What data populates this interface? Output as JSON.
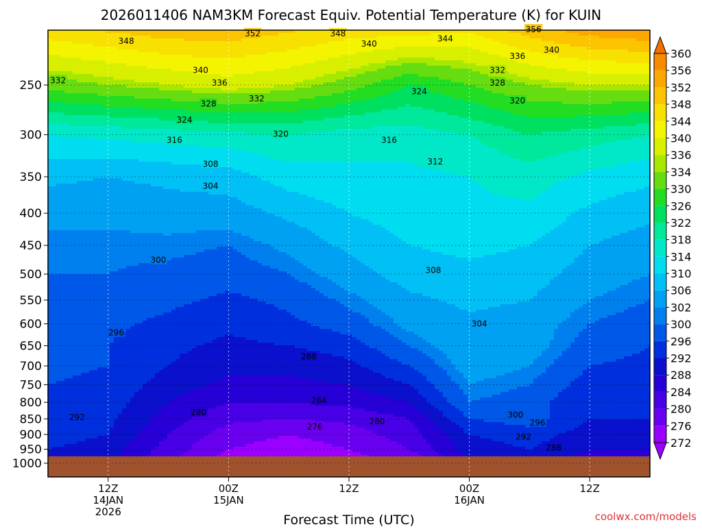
{
  "chart_data": {
    "type": "contour",
    "title": "2026011406 NAM3KM Forecast Equiv. Potential Temperature (K) for KUIN",
    "xlabel": "Forecast Time (UTC)",
    "ylabel": "",
    "credit": "coolwx.com/models",
    "x_unit": "hours after 2026-01-14 06Z",
    "xlim": [
      0,
      60
    ],
    "ylim_hpa": [
      1000,
      200
    ],
    "y_scale": "log",
    "y_ticks": [
      250,
      300,
      350,
      400,
      450,
      500,
      550,
      600,
      650,
      700,
      750,
      800,
      850,
      900,
      950,
      1000
    ],
    "x_ticks": [
      {
        "x": 6,
        "line1": "12Z",
        "line2": "14JAN",
        "line3": "2026"
      },
      {
        "x": 18,
        "line1": "00Z",
        "line2": "15JAN",
        "line3": ""
      },
      {
        "x": 30,
        "line1": "12Z",
        "line2": "",
        "line3": ""
      },
      {
        "x": 42,
        "line1": "00Z",
        "line2": "16JAN",
        "line3": ""
      },
      {
        "x": 54,
        "line1": "12Z",
        "line2": "",
        "line3": ""
      }
    ],
    "colorbar_levels": [
      272,
      276,
      280,
      284,
      288,
      292,
      296,
      300,
      302,
      306,
      310,
      314,
      318,
      322,
      326,
      330,
      334,
      336,
      340,
      344,
      348,
      352,
      356,
      360
    ],
    "colorbar_colors": [
      "#9900ff",
      "#6a00f0",
      "#4800e6",
      "#2600d6",
      "#0a10cc",
      "#0030dd",
      "#0058e8",
      "#0080ee",
      "#00a0f2",
      "#00c0f6",
      "#00dcf0",
      "#00e8c8",
      "#00e89c",
      "#00e060",
      "#22dd22",
      "#66dd10",
      "#a8e800",
      "#d8f000",
      "#f4f400",
      "#f8e000",
      "#fcc400",
      "#fca800",
      "#f88c00",
      "#f07000"
    ],
    "ground_color": "#a0522d",
    "field_columns_x": [
      0,
      6,
      12,
      18,
      24,
      30,
      36,
      42,
      48,
      54,
      60
    ],
    "field_rows_hpa": [
      1000,
      950,
      900,
      850,
      800,
      750,
      700,
      650,
      600,
      550,
      500,
      450,
      400,
      350,
      300,
      250,
      200
    ],
    "field_theta_e": [
      [
        292,
        290,
        280,
        274,
        272,
        274,
        276,
        288,
        290,
        286,
        286
      ],
      [
        292,
        290,
        282,
        276,
        274,
        276,
        280,
        290,
        292,
        288,
        288
      ],
      [
        294,
        292,
        284,
        278,
        276,
        278,
        282,
        292,
        294,
        290,
        290
      ],
      [
        295,
        293,
        286,
        281,
        280,
        281,
        284,
        296,
        298,
        292,
        292
      ],
      [
        296,
        294,
        288,
        284,
        284,
        285,
        288,
        300,
        298,
        292,
        292
      ],
      [
        296,
        295,
        290,
        287,
        287,
        288,
        292,
        302,
        300,
        294,
        294
      ],
      [
        297,
        296,
        292,
        289,
        289,
        291,
        296,
        304,
        302,
        296,
        295
      ],
      [
        297,
        296,
        293,
        291,
        292,
        294,
        300,
        305,
        304,
        298,
        296
      ],
      [
        298,
        297,
        295,
        293,
        295,
        298,
        303,
        305,
        304,
        300,
        298
      ],
      [
        299,
        298,
        297,
        295,
        297,
        301,
        305,
        307,
        306,
        302,
        300
      ],
      [
        300,
        300,
        299,
        298,
        300,
        304,
        308,
        309,
        308,
        304,
        302
      ],
      [
        301,
        301,
        301,
        300,
        303,
        307,
        310,
        311,
        310,
        306,
        304
      ],
      [
        303,
        303,
        304,
        304,
        307,
        310,
        312,
        313,
        313,
        309,
        307
      ],
      [
        307,
        306,
        307,
        308,
        312,
        313,
        313,
        314,
        316,
        313,
        311
      ],
      [
        314,
        315,
        316,
        317,
        318,
        316,
        316,
        318,
        322,
        320,
        318
      ],
      [
        332,
        334,
        336,
        338,
        336,
        332,
        326,
        330,
        334,
        336,
        336
      ],
      [
        348,
        350,
        352,
        352,
        350,
        348,
        348,
        346,
        352,
        356,
        358
      ]
    ],
    "contour_labels": [
      {
        "text": "352",
        "x": 20.4,
        "p": 207
      },
      {
        "text": "348",
        "x": 7.8,
        "p": 213
      },
      {
        "text": "348",
        "x": 28.9,
        "p": 207
      },
      {
        "text": "344",
        "x": 39.6,
        "p": 211
      },
      {
        "text": "356",
        "x": 48.4,
        "p": 204
      },
      {
        "text": "340",
        "x": 32.0,
        "p": 215
      },
      {
        "text": "340",
        "x": 50.2,
        "p": 220
      },
      {
        "text": "336",
        "x": 46.8,
        "p": 225
      },
      {
        "text": "332",
        "x": 1.0,
        "p": 246
      },
      {
        "text": "340",
        "x": 15.2,
        "p": 237
      },
      {
        "text": "336",
        "x": 17.1,
        "p": 248
      },
      {
        "text": "332",
        "x": 20.8,
        "p": 263
      },
      {
        "text": "332",
        "x": 44.8,
        "p": 237
      },
      {
        "text": "328",
        "x": 44.8,
        "p": 248
      },
      {
        "text": "324",
        "x": 37.0,
        "p": 256
      },
      {
        "text": "320",
        "x": 46.8,
        "p": 265
      },
      {
        "text": "328",
        "x": 16.0,
        "p": 268
      },
      {
        "text": "324",
        "x": 13.6,
        "p": 284
      },
      {
        "text": "316",
        "x": 12.6,
        "p": 306
      },
      {
        "text": "320",
        "x": 23.2,
        "p": 299
      },
      {
        "text": "316",
        "x": 34.0,
        "p": 306
      },
      {
        "text": "312",
        "x": 38.6,
        "p": 331
      },
      {
        "text": "308",
        "x": 16.2,
        "p": 334
      },
      {
        "text": "304",
        "x": 16.2,
        "p": 362
      },
      {
        "text": "300",
        "x": 11.0,
        "p": 475
      },
      {
        "text": "308",
        "x": 38.4,
        "p": 493
      },
      {
        "text": "304",
        "x": 43.0,
        "p": 600
      },
      {
        "text": "296",
        "x": 6.8,
        "p": 620
      },
      {
        "text": "288",
        "x": 26.0,
        "p": 677
      },
      {
        "text": "284",
        "x": 27.0,
        "p": 795
      },
      {
        "text": "280",
        "x": 15.0,
        "p": 830
      },
      {
        "text": "280",
        "x": 32.8,
        "p": 858
      },
      {
        "text": "276",
        "x": 26.6,
        "p": 875
      },
      {
        "text": "300",
        "x": 46.6,
        "p": 838
      },
      {
        "text": "296",
        "x": 48.8,
        "p": 862
      },
      {
        "text": "292",
        "x": 2.9,
        "p": 845
      },
      {
        "text": "292",
        "x": 47.4,
        "p": 908
      },
      {
        "text": "288",
        "x": 50.4,
        "p": 945
      }
    ]
  }
}
